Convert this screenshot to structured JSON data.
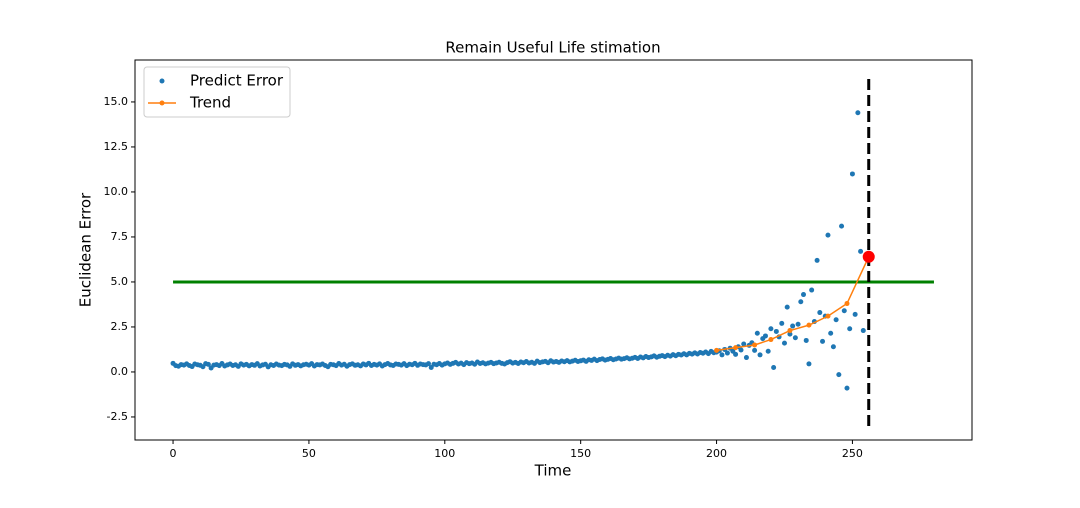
{
  "chart_data": {
    "type": "scatter",
    "title": "Remain Useful Life stimation",
    "x_label": "Time",
    "y_label": "Euclidean Error",
    "xlim": [
      -14,
      294
    ],
    "ylim": [
      -3.78,
      17.33
    ],
    "xticks": [
      0,
      50,
      100,
      150,
      200,
      250
    ],
    "yticks": [
      -2.5,
      {
        "value": 0,
        "label": "0.0"
      },
      2.5,
      {
        "value": 5,
        "label": "5.0"
      },
      7.5,
      {
        "value": 10,
        "label": "10.0"
      },
      12.5,
      {
        "value": 15,
        "label": "15.0"
      }
    ],
    "legend": "upper left",
    "series": [
      {
        "name": "Predict Error",
        "type": "scatter",
        "color": "#1f77b4",
        "x": [
          0,
          1,
          2,
          3,
          4,
          5,
          6,
          7,
          8,
          9,
          10,
          11,
          12,
          13,
          14,
          15,
          16,
          17,
          18,
          19,
          20,
          21,
          22,
          23,
          24,
          25,
          26,
          27,
          28,
          29,
          30,
          31,
          32,
          33,
          34,
          35,
          36,
          37,
          38,
          39,
          40,
          41,
          42,
          43,
          44,
          45,
          46,
          47,
          48,
          49,
          50,
          51,
          52,
          53,
          54,
          55,
          56,
          57,
          58,
          59,
          60,
          61,
          62,
          63,
          64,
          65,
          66,
          67,
          68,
          69,
          70,
          71,
          72,
          73,
          74,
          75,
          76,
          77,
          78,
          79,
          80,
          81,
          82,
          83,
          84,
          85,
          86,
          87,
          88,
          89,
          90,
          91,
          92,
          93,
          94,
          95,
          96,
          97,
          98,
          99,
          100,
          101,
          102,
          103,
          104,
          105,
          106,
          107,
          108,
          109,
          110,
          111,
          112,
          113,
          114,
          115,
          116,
          117,
          118,
          119,
          120,
          121,
          122,
          123,
          124,
          125,
          126,
          127,
          128,
          129,
          130,
          131,
          132,
          133,
          134,
          135,
          136,
          137,
          138,
          139,
          140,
          141,
          142,
          143,
          144,
          145,
          146,
          147,
          148,
          149,
          150,
          151,
          152,
          153,
          154,
          155,
          156,
          157,
          158,
          159,
          160,
          161,
          162,
          163,
          164,
          165,
          166,
          167,
          168,
          169,
          170,
          171,
          172,
          173,
          174,
          175,
          176,
          177,
          178,
          179,
          180,
          181,
          182,
          183,
          184,
          185,
          186,
          187,
          188,
          189,
          190,
          191,
          192,
          193,
          194,
          195,
          196,
          197,
          198,
          199,
          200,
          201,
          202,
          203,
          204,
          205,
          206,
          207,
          208,
          209,
          210,
          211,
          212,
          213,
          214,
          215,
          216,
          217,
          218,
          219,
          220,
          221,
          222,
          223,
          224,
          225,
          226,
          227,
          228,
          229,
          230,
          231,
          232,
          233,
          234,
          235,
          236,
          237,
          238,
          239,
          240,
          241,
          242,
          243,
          244,
          245,
          246,
          247,
          248,
          249,
          250,
          251,
          252,
          253,
          254,
          255,
          256
        ],
        "values": [
          0.48,
          0.35,
          0.32,
          0.41,
          0.38,
          0.45,
          0.36,
          0.3,
          0.44,
          0.4,
          0.37,
          0.29,
          0.46,
          0.42,
          0.22,
          0.38,
          0.41,
          0.35,
          0.47,
          0.33,
          0.39,
          0.44,
          0.36,
          0.4,
          0.31,
          0.45,
          0.38,
          0.42,
          0.34,
          0.41,
          0.37,
          0.46,
          0.33,
          0.39,
          0.43,
          0.28,
          0.4,
          0.36,
          0.44,
          0.38,
          0.35,
          0.42,
          0.39,
          0.31,
          0.45,
          0.37,
          0.41,
          0.34,
          0.4,
          0.43,
          0.38,
          0.46,
          0.33,
          0.41,
          0.39,
          0.44,
          0.36,
          0.29,
          0.42,
          0.4,
          0.35,
          0.47,
          0.38,
          0.43,
          0.32,
          0.41,
          0.45,
          0.37,
          0.4,
          0.34,
          0.44,
          0.39,
          0.48,
          0.36,
          0.42,
          0.38,
          0.45,
          0.33,
          0.41,
          0.47,
          0.39,
          0.36,
          0.44,
          0.42,
          0.38,
          0.46,
          0.35,
          0.43,
          0.4,
          0.48,
          0.37,
          0.44,
          0.41,
          0.39,
          0.46,
          0.25,
          0.43,
          0.4,
          0.47,
          0.38,
          0.45,
          0.5,
          0.42,
          0.48,
          0.53,
          0.44,
          0.49,
          0.41,
          0.52,
          0.46,
          0.5,
          0.43,
          0.55,
          0.47,
          0.51,
          0.45,
          0.49,
          0.53,
          0.46,
          0.5,
          0.54,
          0.48,
          0.44,
          0.52,
          0.57,
          0.49,
          0.53,
          0.47,
          0.55,
          0.51,
          0.58,
          0.5,
          0.54,
          0.48,
          0.6,
          0.52,
          0.56,
          0.59,
          0.51,
          0.62,
          0.55,
          0.58,
          0.53,
          0.61,
          0.57,
          0.63,
          0.56,
          0.6,
          0.65,
          0.58,
          0.62,
          0.66,
          0.59,
          0.68,
          0.64,
          0.71,
          0.63,
          0.69,
          0.73,
          0.66,
          0.7,
          0.75,
          0.68,
          0.72,
          0.77,
          0.71,
          0.74,
          0.79,
          0.73,
          0.76,
          0.81,
          0.75,
          0.83,
          0.78,
          0.86,
          0.8,
          0.84,
          0.89,
          0.82,
          0.87,
          0.91,
          0.85,
          0.93,
          0.88,
          0.96,
          0.9,
          0.98,
          0.94,
          1.01,
          0.95,
          1.03,
          0.99,
          1.06,
          1.0,
          1.08,
          1.04,
          1.11,
          1.02,
          1.14,
          1.07,
          1.1,
          1.18,
          0.95,
          1.25,
          1.05,
          1.32,
          1.15,
          0.98,
          1.4,
          1.22,
          1.55,
          0.8,
          1.48,
          1.62,
          1.2,
          2.15,
          0.95,
          1.85,
          2.0,
          1.15,
          2.4,
          0.25,
          2.25,
          1.95,
          2.7,
          1.6,
          3.6,
          2.1,
          2.55,
          1.9,
          2.65,
          3.9,
          4.3,
          1.75,
          0.45,
          4.55,
          2.8,
          6.2,
          3.3,
          1.7,
          3.1,
          7.6,
          2.15,
          1.4,
          2.9,
          -0.15,
          8.1,
          3.4,
          -0.9,
          2.4,
          11.0,
          3.2,
          14.4,
          6.7,
          2.3,
          6.5,
          6.4
        ]
      },
      {
        "name": "Trend",
        "type": "line",
        "color": "#ff7f0e",
        "x": [
          200,
          207,
          214,
          220,
          227,
          234,
          241,
          248,
          256
        ],
        "values": [
          1.2,
          1.35,
          1.5,
          1.8,
          2.3,
          2.6,
          3.1,
          3.8,
          6.4
        ]
      }
    ],
    "hline": {
      "y": 5,
      "xmin": 0,
      "xmax": 280,
      "color": "#008000"
    },
    "vline": {
      "x": 256,
      "ymin": -3,
      "ymax": 16.3,
      "color": "#000000"
    },
    "highlight": {
      "x": 256,
      "y": 6.4,
      "color": "#ff0000"
    }
  }
}
